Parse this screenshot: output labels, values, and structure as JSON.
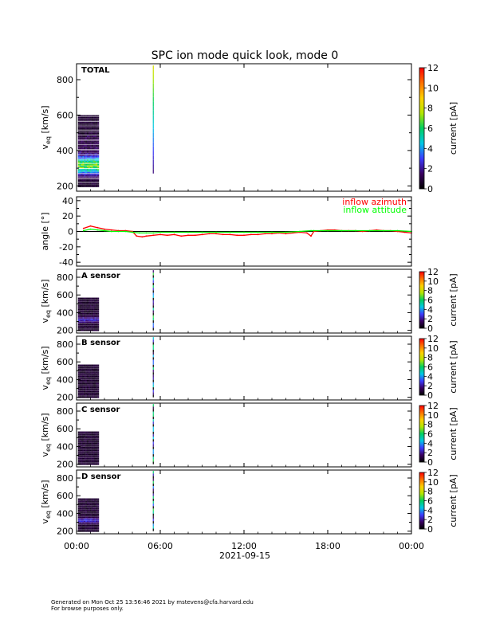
{
  "footer": {
    "line1": "Generated on Mon Oct 25 13:56:46 2021 by mstevens@cfa.harvard.edu",
    "line2": "For browse purposes only."
  },
  "chart_data": {
    "type": "heatmap",
    "title": "SPC ion mode quick look, mode 0",
    "date_label": "2021-09-15",
    "xlim_hours": [
      0,
      24
    ],
    "x_ticks": [
      {
        "h": 0,
        "label": "00:00"
      },
      {
        "h": 6,
        "label": "06:00"
      },
      {
        "h": 12,
        "label": "12:00"
      },
      {
        "h": 18,
        "label": "18:00"
      },
      {
        "h": 24,
        "label": "00:00"
      }
    ],
    "spectrograms": {
      "ylabel_main": "v",
      "ylabel_sub": "eq",
      "ylabel_unit": "[km/s]",
      "ylim": [
        170,
        890
      ],
      "colorbar_label": "current [pA]",
      "colorbar_range": [
        0,
        12
      ],
      "colorbar_colors": [
        "#000000",
        "#3a0060",
        "#3c3cff",
        "#00c8e6",
        "#00d060",
        "#b4e600",
        "#ffd000",
        "#ff7000",
        "#ff0000"
      ],
      "panels": [
        {
          "label": "TOTAL",
          "y_ticks": [
            200,
            400,
            600,
            800
          ],
          "cbar_ticks": [
            0,
            2,
            4,
            6,
            8,
            10,
            12
          ],
          "data_window_hours": [
            0.1,
            1.6
          ],
          "data_vrange": [
            190,
            600
          ],
          "peak_v": 310,
          "spike_hour": 5.5,
          "spike_vrange": [
            270,
            880
          ]
        },
        {
          "label": "A sensor",
          "y_ticks": [
            200,
            400,
            600,
            800
          ],
          "cbar_ticks": [
            0,
            2,
            4,
            6,
            8,
            10,
            12
          ],
          "data_window_hours": [
            0.1,
            1.6
          ],
          "data_vrange": [
            190,
            570
          ],
          "peak_v": 310,
          "spike_hour": 5.5,
          "spike_vrange": [
            200,
            880
          ]
        },
        {
          "label": "B sensor",
          "y_ticks": [
            200,
            400,
            600,
            800
          ],
          "cbar_ticks": [
            0,
            2,
            4,
            6,
            8,
            10,
            12
          ],
          "data_window_hours": [
            0.1,
            1.6
          ],
          "data_vrange": [
            190,
            570
          ],
          "peak_v": 0,
          "spike_hour": 5.5,
          "spike_vrange": [
            200,
            880
          ]
        },
        {
          "label": "C sensor",
          "y_ticks": [
            200,
            400,
            600,
            800
          ],
          "cbar_ticks": [
            0,
            2,
            4,
            6,
            8,
            10,
            12
          ],
          "data_window_hours": [
            0.1,
            1.6
          ],
          "data_vrange": [
            190,
            570
          ],
          "peak_v": 0,
          "spike_hour": 5.5,
          "spike_vrange": [
            200,
            880
          ]
        },
        {
          "label": "D sensor",
          "y_ticks": [
            200,
            400,
            600,
            800
          ],
          "cbar_ticks": [
            0,
            2,
            4,
            6,
            8,
            10,
            12
          ],
          "data_window_hours": [
            0.1,
            1.6
          ],
          "data_vrange": [
            190,
            570
          ],
          "peak_v": 310,
          "spike_hour": 5.5,
          "spike_vrange": [
            200,
            880
          ]
        }
      ]
    },
    "angle_panel": {
      "type": "line",
      "ylabel": "angle [°]",
      "ylim": [
        -45,
        45
      ],
      "y_ticks": [
        -40,
        -20,
        0,
        20,
        40
      ],
      "zero_line": true,
      "series": [
        {
          "name": "inflow azimuth",
          "color": "#ff0000",
          "x": [
            0.5,
            1.0,
            1.5,
            2.0,
            2.5,
            3.0,
            3.5,
            4.0,
            4.3,
            4.7,
            5.0,
            5.5,
            6.0,
            6.5,
            7.0,
            7.5,
            8.0,
            8.5,
            9.0,
            9.5,
            10,
            10.5,
            11,
            11.5,
            12,
            12.5,
            13,
            13.5,
            14,
            14.5,
            15,
            15.5,
            16,
            16.5,
            16.8,
            17,
            17.5,
            18,
            18.5,
            19,
            19.5,
            20,
            20.5,
            21,
            21.5,
            22,
            22.5,
            23,
            23.5,
            24
          ],
          "y": [
            4,
            7,
            5,
            3,
            2,
            1,
            1,
            0,
            -6,
            -7,
            -6,
            -5,
            -4,
            -5,
            -4,
            -6,
            -5,
            -5,
            -4,
            -3,
            -3,
            -4,
            -4,
            -5,
            -5,
            -4,
            -4,
            -3,
            -3,
            -2,
            -3,
            -2,
            -1,
            -2,
            -6,
            0,
            1,
            2,
            2,
            1,
            1,
            1,
            0,
            1,
            2,
            1,
            1,
            0,
            -1,
            -2
          ]
        },
        {
          "name": "inflow attitude",
          "color": "#00ff00",
          "x": [
            0.5,
            1.0,
            1.5,
            2.0,
            2.5,
            3.0,
            3.5,
            4.0,
            4.5,
            5.0,
            5.5,
            6.0,
            7.0,
            8.0,
            9.0,
            10,
            11,
            12,
            13,
            14,
            15,
            16,
            16.8,
            17,
            18,
            19,
            20,
            21,
            22,
            23,
            24
          ],
          "y": [
            1,
            3,
            2,
            1,
            0,
            0,
            0,
            -1,
            -2,
            -2,
            -2,
            -1,
            -1,
            -1,
            -1,
            -1,
            -1,
            -1,
            -1,
            -1,
            -1,
            0,
            1,
            1,
            1,
            1,
            1,
            1,
            1,
            1,
            0
          ]
        }
      ]
    }
  }
}
